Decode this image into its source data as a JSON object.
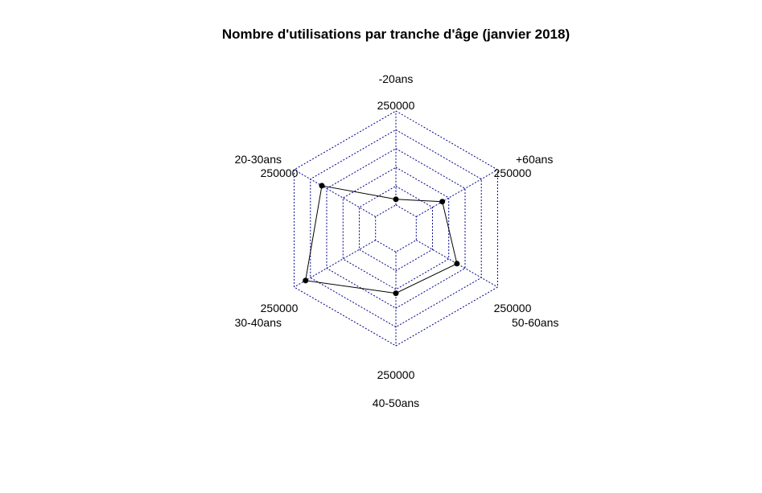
{
  "chart_data": {
    "type": "radar",
    "title": "Nombre d'utilisations par tranche d'âge (janvier 2018)",
    "categories": [
      "-20ans",
      "+60ans",
      "50-60ans",
      "40-50ans",
      "30-40ans",
      "20-30ans"
    ],
    "axis_max_labels": [
      "250000",
      "250000",
      "250000",
      "250000",
      "250000",
      "250000"
    ],
    "range": [
      0,
      250000
    ],
    "grid_levels": 6,
    "series": [
      {
        "values": [
          15000,
          80000,
          125000,
          110000,
          215000,
          165000
        ]
      }
    ],
    "grid": true,
    "grid_color": "#00008b",
    "series_color": "#000000"
  }
}
